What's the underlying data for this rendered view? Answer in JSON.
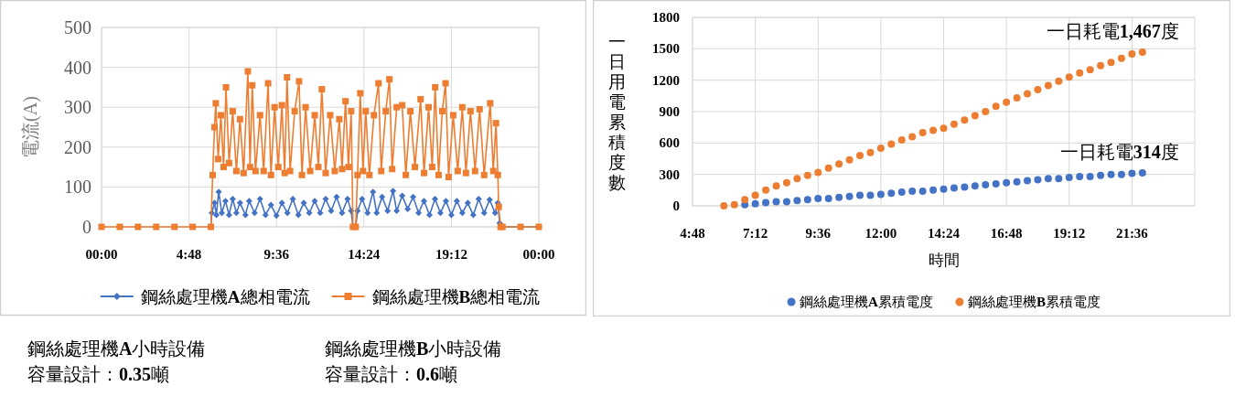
{
  "chart_data": [
    {
      "type": "line",
      "ylabel": "電流(A)",
      "xlim": [
        0,
        24
      ],
      "ylim": [
        0,
        500
      ],
      "xticks": [
        {
          "value": 0,
          "label": "00:00"
        },
        {
          "value": 4.8,
          "label": "4:48"
        },
        {
          "value": 9.6,
          "label": "9:36"
        },
        {
          "value": 14.4,
          "label": "14:24"
        },
        {
          "value": 19.2,
          "label": "19:12"
        },
        {
          "value": 24,
          "label": "00:00"
        }
      ],
      "yticks": [
        0,
        100,
        200,
        300,
        400,
        500
      ],
      "grid": true,
      "legend": "bottom",
      "series": [
        {
          "name": "鋼絲處理機A總相電流",
          "color": "#4472c4",
          "marker": "diamond",
          "x": [
            6.0,
            6.05,
            6.2,
            6.3,
            6.43,
            6.6,
            6.8,
            7.0,
            7.2,
            7.4,
            7.6,
            7.9,
            8.1,
            8.4,
            8.7,
            9.0,
            9.3,
            9.6,
            9.9,
            10.2,
            10.5,
            10.8,
            11.1,
            11.4,
            11.7,
            12.0,
            12.3,
            12.6,
            12.9,
            13.2,
            13.5,
            13.7,
            13.8,
            13.95,
            14.05,
            14.3,
            14.6,
            14.9,
            15.1,
            15.4,
            15.7,
            16.0,
            16.2,
            16.5,
            16.8,
            17.1,
            17.4,
            17.7,
            18.0,
            18.3,
            18.6,
            18.9,
            19.2,
            19.5,
            19.8,
            20.1,
            20.4,
            20.7,
            21.0,
            21.3,
            21.6,
            21.75,
            21.85,
            22.0,
            23,
            24
          ],
          "values": [
            0,
            35,
            60,
            30,
            88,
            35,
            65,
            30,
            70,
            35,
            60,
            30,
            65,
            35,
            70,
            30,
            55,
            28,
            60,
            35,
            70,
            30,
            60,
            35,
            65,
            35,
            70,
            40,
            75,
            35,
            70,
            40,
            0,
            0,
            40,
            70,
            35,
            88,
            35,
            75,
            40,
            90,
            40,
            78,
            45,
            75,
            35,
            65,
            30,
            70,
            35,
            65,
            30,
            65,
            35,
            60,
            30,
            70,
            35,
            68,
            35,
            60,
            10,
            0,
            0,
            0
          ]
        },
        {
          "name": "鋼絲處理機B總相電流",
          "color": "#ed7d31",
          "marker": "square",
          "x": [
            0,
            1,
            2,
            3,
            4,
            5,
            6.0,
            6.1,
            6.2,
            6.27,
            6.4,
            6.55,
            6.7,
            6.83,
            7.0,
            7.2,
            7.4,
            7.6,
            7.8,
            8.03,
            8.15,
            8.27,
            8.45,
            8.7,
            8.9,
            9.14,
            9.3,
            9.5,
            9.7,
            9.9,
            10.05,
            10.18,
            10.35,
            10.6,
            10.84,
            11.0,
            11.2,
            11.45,
            11.7,
            11.9,
            12.09,
            12.3,
            12.55,
            12.8,
            13.05,
            13.2,
            13.39,
            13.55,
            13.7,
            13.8,
            13.95,
            14.05,
            14.2,
            14.35,
            14.5,
            14.7,
            14.95,
            15.2,
            15.35,
            15.6,
            15.8,
            15.95,
            16.2,
            16.5,
            16.7,
            16.95,
            17.2,
            17.51,
            17.7,
            17.95,
            18.15,
            18.31,
            18.5,
            18.7,
            18.88,
            19.05,
            19.3,
            19.55,
            19.8,
            20.0,
            20.25,
            20.5,
            20.75,
            21.0,
            21.33,
            21.5,
            21.65,
            21.75,
            21.8,
            21.9,
            22,
            23,
            24
          ],
          "values": [
            0,
            0,
            0,
            0,
            0,
            0,
            0,
            130,
            250,
            310,
            170,
            280,
            150,
            350,
            160,
            290,
            140,
            270,
            135,
            390,
            150,
            355,
            140,
            280,
            140,
            360,
            130,
            300,
            150,
            305,
            135,
            375,
            140,
            290,
            365,
            130,
            300,
            140,
            280,
            150,
            345,
            135,
            280,
            140,
            270,
            145,
            315,
            150,
            290,
            0,
            0,
            130,
            335,
            140,
            290,
            130,
            280,
            360,
            140,
            290,
            370,
            145,
            300,
            305,
            130,
            290,
            150,
            320,
            135,
            300,
            150,
            350,
            130,
            290,
            360,
            125,
            280,
            140,
            300,
            135,
            290,
            140,
            295,
            130,
            310,
            140,
            260,
            130,
            50,
            0,
            0,
            0,
            0
          ]
        }
      ],
      "annotations": [
        "鋼絲處理機A小時設備容量設計：0.35噸",
        "鋼絲處理機B小時設備容量設計：0.6噸"
      ]
    },
    {
      "type": "scatter",
      "marker": "circle",
      "xlabel": "時間",
      "ylabel": "一日用電累積度數",
      "xlim": [
        4.8,
        24
      ],
      "ylim": [
        0,
        1800
      ],
      "xticks": [
        {
          "value": 4.8,
          "label": "4:48"
        },
        {
          "value": 7.2,
          "label": "7:12"
        },
        {
          "value": 9.6,
          "label": "9:36"
        },
        {
          "value": 12,
          "label": "12:00"
        },
        {
          "value": 14.4,
          "label": "14:24"
        },
        {
          "value": 16.8,
          "label": "16:48"
        },
        {
          "value": 19.2,
          "label": "19:12"
        },
        {
          "value": 21.6,
          "label": "21:36"
        }
      ],
      "yticks": [
        0,
        300,
        600,
        900,
        1200,
        1500,
        1800
      ],
      "grid": true,
      "legend": "bottom",
      "x": [
        6.0,
        6.4,
        6.8,
        7.2,
        7.6,
        8.0,
        8.4,
        8.8,
        9.2,
        9.6,
        10.0,
        10.4,
        10.8,
        11.2,
        11.6,
        12.0,
        12.4,
        12.8,
        13.2,
        13.6,
        14.0,
        14.4,
        14.8,
        15.2,
        15.6,
        16.0,
        16.4,
        16.8,
        17.2,
        17.6,
        18.0,
        18.4,
        18.8,
        19.2,
        19.6,
        20.0,
        20.4,
        20.8,
        21.2,
        21.6,
        22.0
      ],
      "series": [
        {
          "name": "鋼絲處理機A累積電度",
          "color": "#4472c4",
          "values": [
            null,
            null,
            10,
            20,
            30,
            40,
            40,
            50,
            60,
            70,
            70,
            80,
            90,
            100,
            100,
            110,
            120,
            130,
            140,
            140,
            150,
            160,
            170,
            180,
            190,
            200,
            210,
            220,
            230,
            240,
            250,
            260,
            260,
            270,
            280,
            280,
            290,
            300,
            300,
            310,
            314
          ]
        },
        {
          "name": "鋼絲處理機B累積電度",
          "color": "#ed7d31",
          "values": [
            0,
            10,
            60,
            100,
            150,
            190,
            220,
            260,
            290,
            320,
            360,
            400,
            440,
            480,
            510,
            550,
            590,
            630,
            660,
            700,
            720,
            740,
            780,
            820,
            860,
            900,
            950,
            990,
            1030,
            1070,
            1110,
            1150,
            1190,
            1230,
            1270,
            1300,
            1340,
            1370,
            1410,
            1450,
            1467
          ]
        }
      ],
      "annotations": [
        {
          "text": "一日耗電1,467度",
          "x": 22.0,
          "y": 1467
        },
        {
          "text": "一日耗電314度",
          "x": 22.0,
          "y": 314
        }
      ]
    }
  ]
}
